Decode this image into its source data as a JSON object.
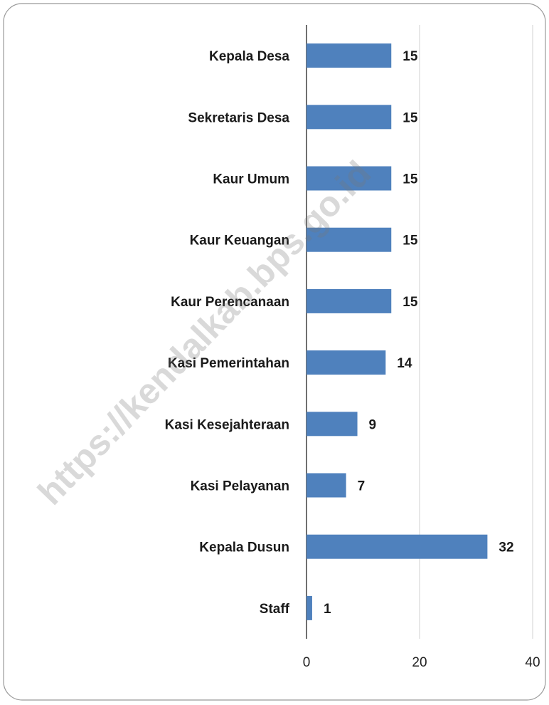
{
  "chart_data": {
    "type": "barh",
    "categories": [
      "Kepala Desa",
      "Sekretaris Desa",
      "Kaur Umum",
      "Kaur Keuangan",
      "Kaur Perencanaan",
      "Kasi Pemerintahan",
      "Kasi Kesejahteraan",
      "Kasi Pelayanan",
      "Kepala Dusun",
      "Staff"
    ],
    "values": [
      15,
      15,
      15,
      15,
      15,
      14,
      9,
      7,
      32,
      1
    ],
    "color": "#4f81bd",
    "xlim": [
      0,
      40
    ],
    "xticks": [
      0,
      20,
      40
    ],
    "grid": true,
    "watermark": "https://kendalkab.bps.go.id"
  }
}
